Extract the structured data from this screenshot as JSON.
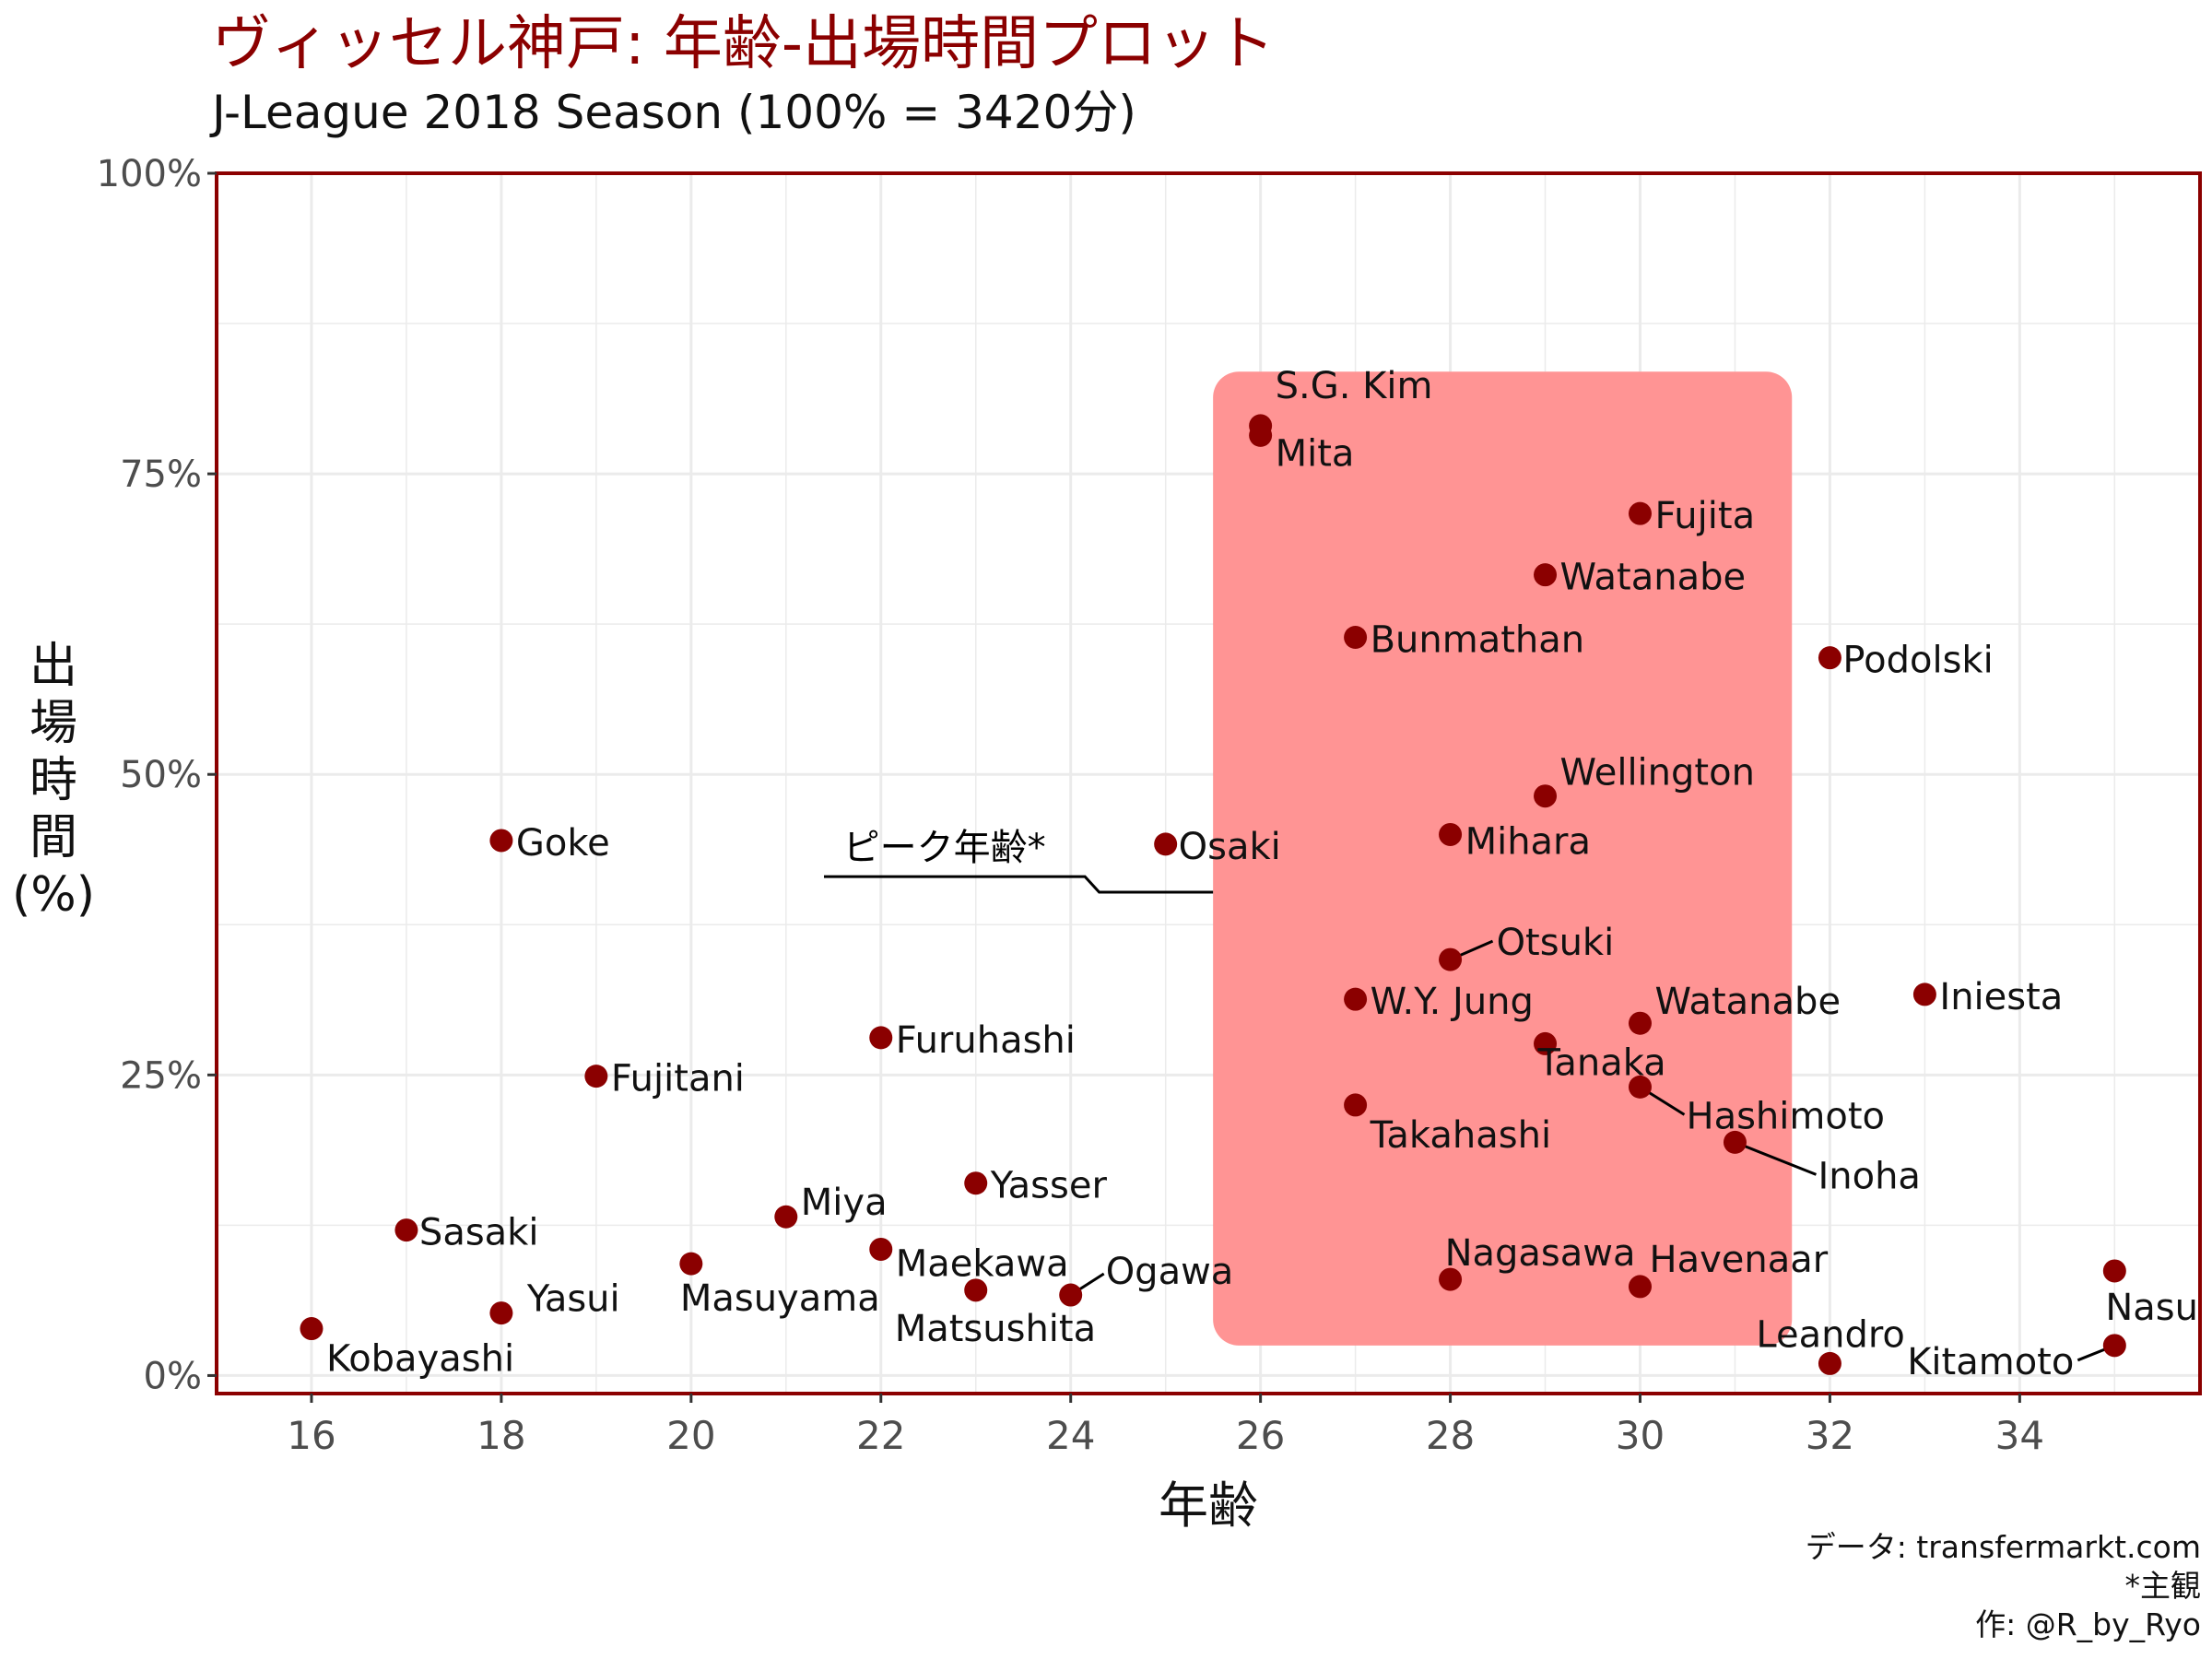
{
  "title": "ヴィッセル神戸: 年齢-出場時間プロット",
  "subtitle": "J-League 2018 Season (100% = 3420分)",
  "caption": [
    "データ: transfermarkt.com",
    "*主観",
    "作: @R_by_Ryo"
  ],
  "colors": {
    "accent": "#8b0000",
    "highlight": "#ff9494",
    "grid": "#ebebeb"
  },
  "chart_data": {
    "type": "scatter",
    "title": "ヴィッセル神戸: 年齢-出場時間プロット",
    "subtitle": "J-League 2018 Season (100% = 3420分)",
    "xlabel": "年齢",
    "ylabel": "出場時間(%)",
    "xlim": [
      15,
      35.9
    ],
    "ylim": [
      -1.5,
      100
    ],
    "x_ticks": [
      16,
      18,
      20,
      22,
      24,
      26,
      28,
      30,
      32,
      34
    ],
    "x_tick_labels": [
      "16",
      "18",
      "20",
      "22",
      "24",
      "26",
      "28",
      "30",
      "32",
      "34"
    ],
    "y_ticks": [
      0,
      25,
      50,
      75,
      100
    ],
    "y_tick_labels": [
      "0%",
      "25%",
      "50%",
      "75%",
      "100%"
    ],
    "grid": true,
    "highlight_region": {
      "x": [
        25.5,
        31.6
      ],
      "y": [
        2.5,
        83.5
      ]
    },
    "annotation": "ピーク年齢*",
    "points": [
      {
        "name": "S.G. Kim",
        "age": 26,
        "pct": 79
      },
      {
        "name": "Mita",
        "age": 26,
        "pct": 78.2
      },
      {
        "name": "Fujita",
        "age": 30,
        "pct": 71.7
      },
      {
        "name": "Watanabe",
        "age": 29,
        "pct": 66.6
      },
      {
        "name": "Bunmathan",
        "age": 27,
        "pct": 61.4
      },
      {
        "name": "Podolski",
        "age": 32,
        "pct": 59.7
      },
      {
        "name": "Wellington",
        "age": 29,
        "pct": 48.2
      },
      {
        "name": "Goke",
        "age": 18,
        "pct": 44.5
      },
      {
        "name": "Osaki",
        "age": 25,
        "pct": 44.2
      },
      {
        "name": "Mihara",
        "age": 28,
        "pct": 45
      },
      {
        "name": "Otsuki",
        "age": 28,
        "pct": 34.6
      },
      {
        "name": "W.Y. Jung",
        "age": 27,
        "pct": 31.3
      },
      {
        "name": "Watanabe",
        "age": 30,
        "pct": 29.3
      },
      {
        "name": "Iniesta",
        "age": 33,
        "pct": 31.7
      },
      {
        "name": "Tanaka",
        "age": 29,
        "pct": 27.6
      },
      {
        "name": "Furuhashi",
        "age": 22,
        "pct": 28.1
      },
      {
        "name": "Fujitani",
        "age": 19,
        "pct": 24.9
      },
      {
        "name": "Hashimoto",
        "age": 30,
        "pct": 24
      },
      {
        "name": "Takahashi",
        "age": 27,
        "pct": 22.5
      },
      {
        "name": "Inoha",
        "age": 31,
        "pct": 19.4
      },
      {
        "name": "Yasser",
        "age": 23,
        "pct": 16
      },
      {
        "name": "Miya",
        "age": 21,
        "pct": 13.2
      },
      {
        "name": "Sasaki",
        "age": 17,
        "pct": 12.1
      },
      {
        "name": "Maekawa",
        "age": 22,
        "pct": 10.5
      },
      {
        "name": "Masuyama",
        "age": 20,
        "pct": 9.3
      },
      {
        "name": "Nagasawa",
        "age": 28,
        "pct": 8
      },
      {
        "name": "Havenaar",
        "age": 30,
        "pct": 7.4
      },
      {
        "name": "Matsushita",
        "age": 23,
        "pct": 7.1
      },
      {
        "name": "Ogawa",
        "age": 24,
        "pct": 6.7
      },
      {
        "name": "Nasu",
        "age": 35,
        "pct": 8.7
      },
      {
        "name": "Yasui",
        "age": 18,
        "pct": 5.2
      },
      {
        "name": "Kobayashi",
        "age": 16,
        "pct": 3.9
      },
      {
        "name": "Kitamoto",
        "age": 35,
        "pct": 2.5
      },
      {
        "name": "Leandro",
        "age": 32,
        "pct": 1
      }
    ]
  }
}
